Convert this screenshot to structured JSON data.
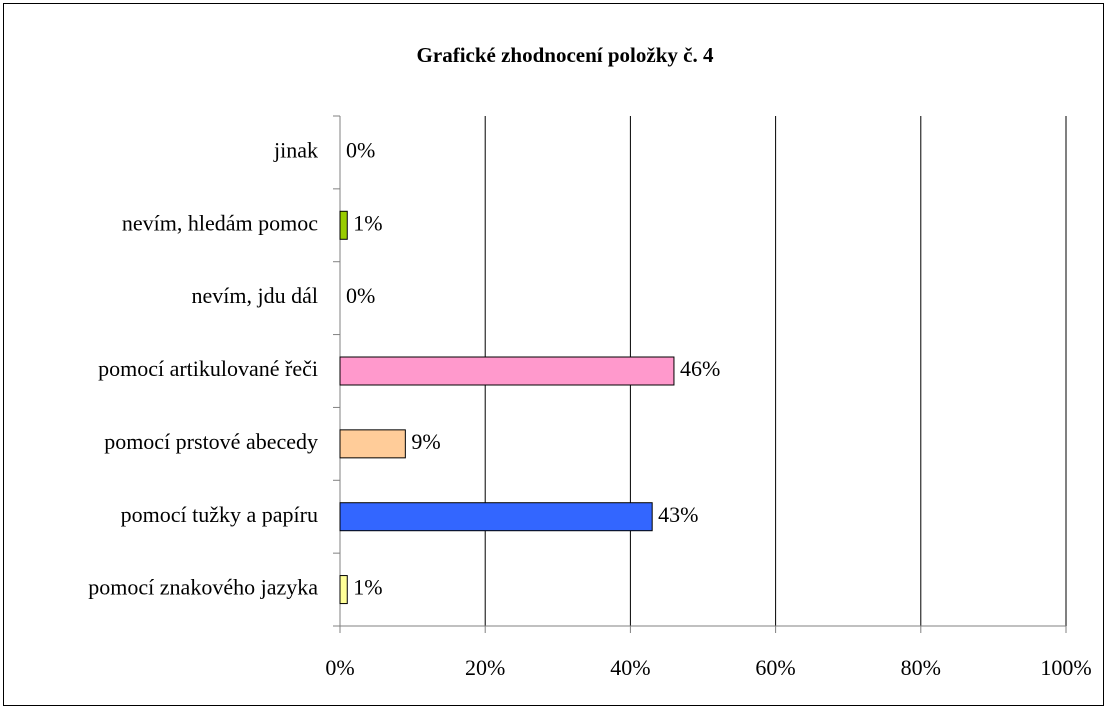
{
  "chart_data": {
    "type": "bar",
    "orientation": "horizontal",
    "title": "Grafické zhodnocení položky č. 4",
    "categories": [
      "jinak",
      "nevím, hledám pomoc",
      "nevím, jdu dál",
      "pomocí artikulované řeči",
      "pomocí prstové abecedy",
      "pomocí tužky a papíru",
      "pomocí znakového jazyka"
    ],
    "values": [
      0,
      1,
      0,
      46,
      9,
      43,
      1
    ],
    "value_labels": [
      "0%",
      "1%",
      "0%",
      "46%",
      "9%",
      "43%",
      "1%"
    ],
    "colors": [
      null,
      "#99cc00",
      null,
      "#ff99cc",
      "#ffcc99",
      "#3366ff",
      "#ffff99"
    ],
    "xlim": [
      0,
      100
    ],
    "xticks": [
      {
        "value": 0,
        "label": "0%"
      },
      {
        "value": 20,
        "label": "20%"
      },
      {
        "value": 40,
        "label": "40%"
      },
      {
        "value": 60,
        "label": "60%"
      },
      {
        "value": 80,
        "label": "80%"
      },
      {
        "value": 100,
        "label": "100%"
      }
    ],
    "grid": true
  }
}
